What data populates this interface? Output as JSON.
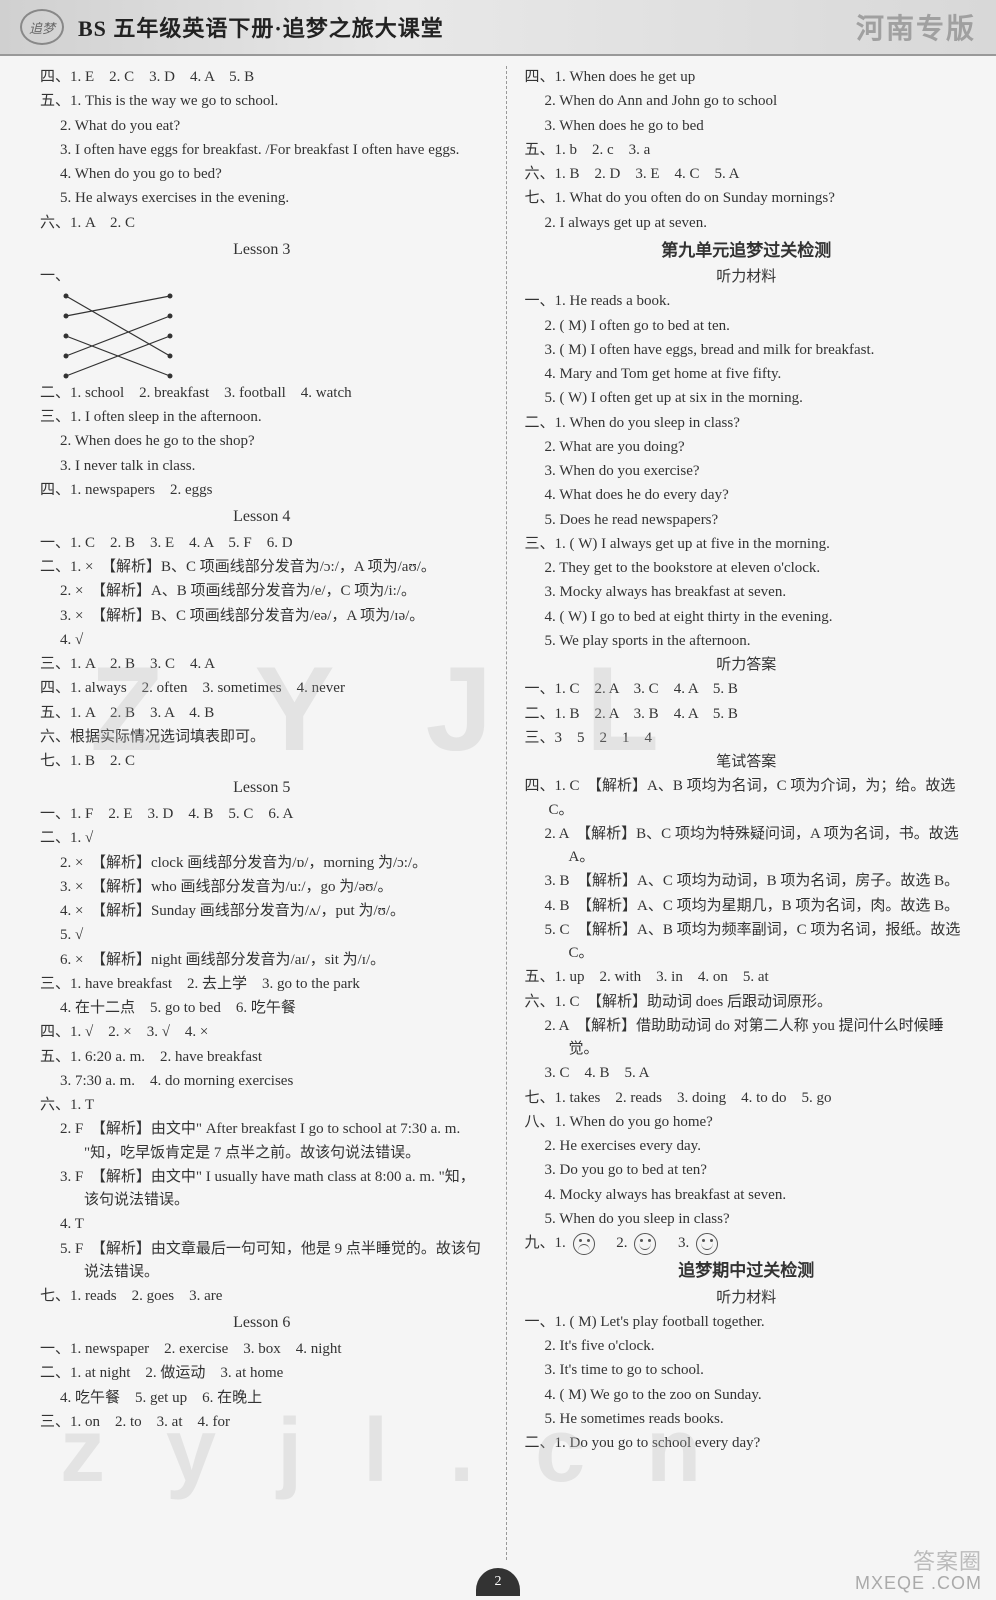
{
  "header": {
    "logo_text": "追梦",
    "title": "BS 五年级英语下册·追梦之旅大课堂",
    "edition": "河南专版"
  },
  "watermarks": {
    "w1": "Z Y J L",
    "w2": "z y j l . c n"
  },
  "footer": {
    "site": "MXEQE .COM",
    "brand": "答案圈",
    "page": "2"
  },
  "left": {
    "l01": "四、1. E　2. C　3. D　4. A　5. B",
    "l02": "五、1. This is the way we go to school.",
    "l03": "2. What do you eat?",
    "l04": "3. I often have eggs for breakfast. /For breakfast I often have eggs.",
    "l05": "4. When do you go to bed?",
    "l06": "5. He always exercises in the evening.",
    "l07": "六、1. A　2. C",
    "lesson3": "Lesson 3",
    "l08": "一、",
    "l09": "二、1. school　2. breakfast　3. football　4. watch",
    "l10": "三、1. I often sleep in the afternoon.",
    "l11": "2. When does he go to the shop?",
    "l12": "3. I never talk in class.",
    "l13": "四、1. newspapers　2. eggs",
    "lesson4": "Lesson 4",
    "l14": "一、1. C　2. B　3. E　4. A　5. F　6. D",
    "l15": "二、1. ×　【解析】B、C 项画线部分发音为/ɔ:/，A 项为/aʊ/。",
    "l16": "2. ×　【解析】A、B 项画线部分发音为/e/，C 项为/i:/。",
    "l17": "3. ×　【解析】B、C 项画线部分发音为/eə/，A 项为/ɪə/。",
    "l18": "4. √",
    "l19": "三、1. A　2. B　3. C　4. A",
    "l20": "四、1. always　2. often　3. sometimes　4. never",
    "l21": "五、1. A　2. B　3. A　4. B",
    "l22": "六、根据实际情况选词填表即可。",
    "l23": "七、1. B　2. C",
    "lesson5": "Lesson 5",
    "l24": "一、1. F　2. E　3. D　4. B　5. C　6. A",
    "l25": "二、1. √",
    "l26": "2. ×　【解析】clock 画线部分发音为/ɒ/，morning 为/ɔ:/。",
    "l27": "3. ×　【解析】who 画线部分发音为/u:/，go 为/əʊ/。",
    "l28": "4. ×　【解析】Sunday 画线部分发音为/ʌ/，put 为/ʊ/。",
    "l29": "5. √",
    "l30": "6. ×　【解析】night 画线部分发音为/aɪ/，sit 为/ɪ/。",
    "l31": "三、1. have breakfast　2. 去上学　3. go to the park",
    "l32": "4. 在十二点　5. go to bed　6. 吃午餐",
    "l33": "四、1. √　2. ×　3. √　4. ×",
    "l34": "五、1. 6:20 a. m.　2. have breakfast",
    "l35": "3. 7:30 a. m.　4. do morning exercises",
    "l36": "六、1. T",
    "l37": "2. F　【解析】由文中\" After breakfast I go to school at 7:30 a. m. \"知，吃早饭肯定是 7 点半之前。故该句说法错误。",
    "l38": "3. F　【解析】由文中\" I usually have math class at 8:00 a. m. \"知，该句说法错误。",
    "l39": "4. T",
    "l40": "5. F　【解析】由文章最后一句可知，他是 9 点半睡觉的。故该句说法错误。",
    "l41": "七、1. reads　2. goes　3. are",
    "lesson6": "Lesson 6",
    "l42": "一、1. newspaper　2. exercise　3. box　4. night",
    "l43": "二、1. at night　2. 做运动　3. at home",
    "l44": "4. 吃午餐　5. get up　6. 在晚上",
    "l45": "三、1. on　2. to　3. at　4. for"
  },
  "right": {
    "r01": "四、1. When does he get up",
    "r02": "2. When do Ann and John go to school",
    "r03": "3. When does he go to bed",
    "r04": "五、1. b　2. c　3. a",
    "r05": "六、1. B　2. D　3. E　4. C　5. A",
    "r06": "七、1. What do you often do on Sunday mornings?",
    "r07": "2. I always get up at seven.",
    "sec9": "第九单元追梦过关检测",
    "listenmat": "听力材料",
    "r08": "一、1. He reads a book.",
    "r09": "2. ( M) I often go to bed at ten.",
    "r10": "3. ( M) I often have eggs, bread and milk for breakfast.",
    "r11": "4. Mary and Tom get home at five fifty.",
    "r12": "5. ( W) I often get up at six in the morning.",
    "r13": "二、1. When do you sleep in class?",
    "r14": "2. What are you doing?",
    "r15": "3. When do you exercise?",
    "r16": "4. What does he do every day?",
    "r17": "5. Does he read newspapers?",
    "r18": "三、1. ( W) I always get up at five in the morning.",
    "r19": "2. They get to the bookstore at eleven o'clock.",
    "r20": "3. Mocky always has breakfast at seven.",
    "r21": "4. ( W) I go to bed at eight thirty in the evening.",
    "r22": "5. We play sports in the afternoon.",
    "listenans": "听力答案",
    "r23": "一、1. C　2. A　3. C　4. A　5. B",
    "r24": "二、1. B　2. A　3. B　4. A　5. B",
    "r25": "三、3　5　2　1　4",
    "writtenans": "笔试答案",
    "r26": "四、1. C　【解析】A、B 项均为名词，C 项为介词，为；给。故选 C。",
    "r27": "2. A　【解析】B、C 项均为特殊疑问词，A 项为名词，书。故选 A。",
    "r28": "3. B　【解析】A、C 项均为动词，B 项为名词，房子。故选 B。",
    "r29": "4. B　【解析】A、C 项均为星期几，B 项为名词，肉。故选 B。",
    "r30": "5. C　【解析】A、B 项均为频率副词，C 项为名词，报纸。故选 C。",
    "r31": "五、1. up　2. with　3. in　4. on　5. at",
    "r32": "六、1. C　【解析】助动词 does 后跟动词原形。",
    "r33": "2. A　【解析】借助助动词 do 对第二人称 you 提问什么时候睡觉。",
    "r34": "3. C　4. B　5. A",
    "r35": "七、1. takes　2. reads　3. doing　4. to do　5. go",
    "r36": "八、1. When do you go home?",
    "r37": "2. He exercises every day.",
    "r38": "3. Do you go to bed at ten?",
    "r39": "4. Mocky always has breakfast at seven.",
    "r40": "5. When do you sleep in class?",
    "r41a": "九、1. ",
    "r41b": "　2. ",
    "r41c": "　3. ",
    "secmid": "追梦期中过关检测",
    "listenmat2": "听力材料",
    "r42": "一、1. ( M) Let's play football together.",
    "r43": "2. It's five o'clock.",
    "r44": "3. It's time to go to school.",
    "r45": "4. ( M) We go to the zoo on Sunday.",
    "r46": "5. He sometimes reads books.",
    "r47": "二、1. Do you go to school every day?"
  },
  "diagram": {
    "left_points": [
      [
        6,
        6
      ],
      [
        6,
        26
      ],
      [
        6,
        46
      ],
      [
        6,
        66
      ],
      [
        6,
        86
      ]
    ],
    "right_points": [
      [
        110,
        6
      ],
      [
        110,
        26
      ],
      [
        110,
        46
      ],
      [
        110,
        66
      ],
      [
        110,
        86
      ]
    ],
    "lines": [
      [
        0,
        3
      ],
      [
        1,
        0
      ],
      [
        2,
        4
      ],
      [
        3,
        1
      ],
      [
        4,
        2
      ]
    ],
    "dot_color": "#333",
    "line_color": "#333"
  }
}
